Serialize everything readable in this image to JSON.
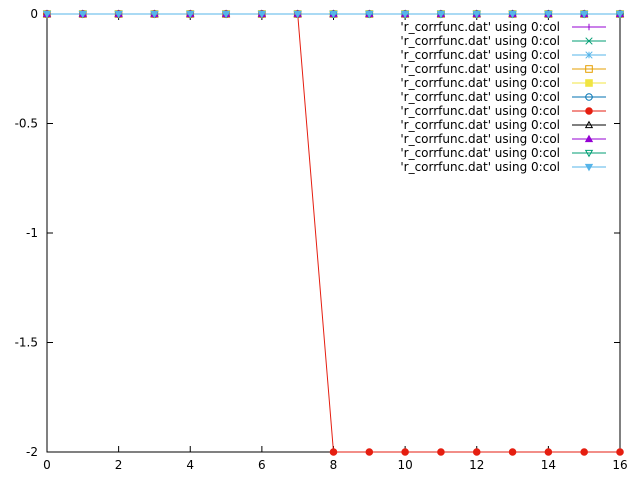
{
  "chart_data": {
    "type": "line",
    "title": "",
    "xlabel": "",
    "ylabel": "",
    "xlim": [
      0,
      16
    ],
    "ylim": [
      -2,
      0
    ],
    "x_ticks": [
      {
        "value": 0,
        "label": "0"
      },
      {
        "value": 2,
        "label": "2"
      },
      {
        "value": 4,
        "label": "4"
      },
      {
        "value": 6,
        "label": "6"
      },
      {
        "value": 8,
        "label": "8"
      },
      {
        "value": 10,
        "label": "10"
      },
      {
        "value": 12,
        "label": "12"
      },
      {
        "value": 14,
        "label": "14"
      },
      {
        "value": 16,
        "label": "16"
      }
    ],
    "y_ticks": [
      {
        "value": 0,
        "label": "0"
      },
      {
        "value": -0.5,
        "label": "-0.5"
      },
      {
        "value": -1,
        "label": "-1"
      },
      {
        "value": -1.5,
        "label": "-1.5"
      },
      {
        "value": -2,
        "label": "-2"
      }
    ],
    "grid": false,
    "legend_position": "top-right",
    "x": [
      0,
      1,
      2,
      3,
      4,
      5,
      6,
      7,
      8,
      9,
      10,
      11,
      12,
      13,
      14,
      15,
      16
    ],
    "series": [
      {
        "name": "'r_corrfunc.dat' using 0:col",
        "color": "#9400d3",
        "marker": "plus",
        "values": [
          0,
          0,
          0,
          0,
          0,
          0,
          0,
          0,
          0,
          0,
          0,
          0,
          0,
          0,
          0,
          0,
          0
        ]
      },
      {
        "name": "'r_corrfunc.dat' using 0:col",
        "color": "#009e73",
        "marker": "cross",
        "values": [
          0,
          0,
          0,
          0,
          0,
          0,
          0,
          0,
          0,
          0,
          0,
          0,
          0,
          0,
          0,
          0,
          0
        ]
      },
      {
        "name": "'r_corrfunc.dat' using 0:col",
        "color": "#56b4e9",
        "marker": "star",
        "values": [
          0,
          0,
          0,
          0,
          0,
          0,
          0,
          0,
          0,
          0,
          0,
          0,
          0,
          0,
          0,
          0,
          0
        ]
      },
      {
        "name": "'r_corrfunc.dat' using 0:col",
        "color": "#e69f00",
        "marker": "square-open",
        "values": [
          0,
          0,
          0,
          0,
          0,
          0,
          0,
          0,
          0,
          0,
          0,
          0,
          0,
          0,
          0,
          0,
          0
        ]
      },
      {
        "name": "'r_corrfunc.dat' using 0:col",
        "color": "#f0e442",
        "marker": "square-filled",
        "values": [
          0,
          0,
          0,
          0,
          0,
          0,
          0,
          0,
          0,
          0,
          0,
          0,
          0,
          0,
          0,
          0,
          0
        ]
      },
      {
        "name": "'r_corrfunc.dat' using 0:col",
        "color": "#0072b2",
        "marker": "circle-open",
        "values": [
          0,
          0,
          0,
          0,
          0,
          0,
          0,
          0,
          0,
          0,
          0,
          0,
          0,
          0,
          0,
          0,
          0
        ]
      },
      {
        "name": "'r_corrfunc.dat' using 0:col",
        "color": "#e51e10",
        "marker": "circle-filled",
        "values": [
          0,
          0,
          0,
          0,
          0,
          0,
          0,
          0,
          -2,
          -2,
          -2,
          -2,
          -2,
          -2,
          -2,
          -2,
          -2
        ]
      },
      {
        "name": "'r_corrfunc.dat' using 0:col",
        "color": "#000000",
        "marker": "triangle-open",
        "values": [
          0,
          0,
          0,
          0,
          0,
          0,
          0,
          0,
          0,
          0,
          0,
          0,
          0,
          0,
          0,
          0,
          0
        ]
      },
      {
        "name": "'r_corrfunc.dat' using 0:col",
        "color": "#9400d3",
        "marker": "triangle-filled",
        "values": [
          0,
          0,
          0,
          0,
          0,
          0,
          0,
          0,
          0,
          0,
          0,
          0,
          0,
          0,
          0,
          0,
          0
        ]
      },
      {
        "name": "'r_corrfunc.dat' using 0:col",
        "color": "#009e73",
        "marker": "triangle-down-open",
        "values": [
          0,
          0,
          0,
          0,
          0,
          0,
          0,
          0,
          0,
          0,
          0,
          0,
          0,
          0,
          0,
          0,
          0
        ]
      },
      {
        "name": "'r_corrfunc.dat' using 0:col",
        "color": "#56b4e9",
        "marker": "triangle-down-filled",
        "values": [
          0,
          0,
          0,
          0,
          0,
          0,
          0,
          0,
          0,
          0,
          0,
          0,
          0,
          0,
          0,
          0,
          0
        ]
      }
    ]
  }
}
